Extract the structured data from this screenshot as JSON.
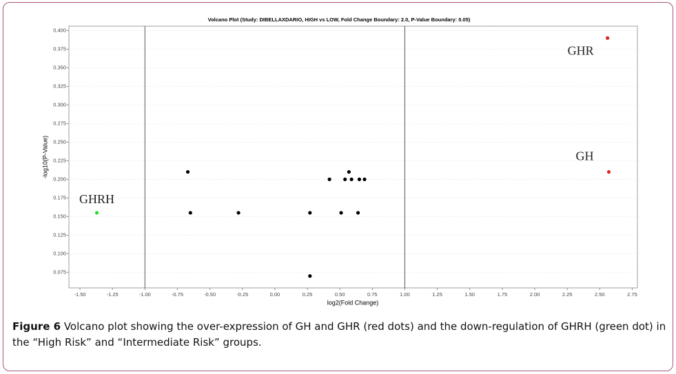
{
  "chart_data": {
    "type": "scatter",
    "title": "Volcano Plot (Study: DIBELLAXDARIO, HIGH vs LOW, Fold Change Boundary: 2.0, P-Value Boundary: 0.05)",
    "x_label": "log2(Fold Change)",
    "y_label": "-log10(P-Value)",
    "series": [
      {
        "color": "#000000",
        "x": [
          -0.67,
          -0.65,
          -0.28,
          0.27,
          0.27,
          0.42,
          0.54,
          0.57,
          0.59,
          0.65,
          0.69,
          0.51,
          0.64
        ],
        "values": [
          0.21,
          0.155,
          0.155,
          0.155,
          0.07,
          0.2,
          0.2,
          0.21,
          0.2,
          0.2,
          0.2,
          0.155,
          0.155
        ]
      },
      {
        "color": "#22dd22",
        "x": [
          -1.37
        ],
        "values": [
          0.155
        ],
        "point_labels": [
          "GHRH"
        ]
      },
      {
        "color": "#dd2222",
        "x": [
          2.56,
          2.57
        ],
        "values": [
          0.39,
          0.21
        ],
        "point_labels": [
          "GHR",
          "GH"
        ]
      }
    ],
    "boundaries": [
      -1,
      1
    ],
    "xlim": [
      -1.585,
      2.79
    ],
    "ylim": [
      0.054,
      0.406
    ],
    "xticks": [
      {
        "value": -1.5,
        "label": "-1.50"
      },
      {
        "value": -1.25,
        "label": "-1.25"
      },
      {
        "value": -1,
        "label": "-1.00"
      },
      {
        "value": -0.75,
        "label": "-0.75"
      },
      {
        "value": -0.5,
        "label": "-0.50"
      },
      {
        "value": -0.25,
        "label": "-0.25"
      },
      {
        "value": 0,
        "label": "0.00"
      },
      {
        "value": 0.25,
        "label": "0.25"
      },
      {
        "value": 0.5,
        "label": "0.50"
      },
      {
        "value": 0.75,
        "label": "0.75"
      },
      {
        "value": 1,
        "label": "1.00"
      },
      {
        "value": 1.25,
        "label": "1.25"
      },
      {
        "value": 1.5,
        "label": "1.50"
      },
      {
        "value": 1.75,
        "label": "1.75"
      },
      {
        "value": 2,
        "label": "2.00"
      },
      {
        "value": 2.25,
        "label": "2.25"
      },
      {
        "value": 2.5,
        "label": "2.50"
      },
      {
        "value": 2.75,
        "label": "2.75"
      }
    ],
    "yticks": [
      {
        "value": 0.075,
        "label": "0.075"
      },
      {
        "value": 0.1,
        "label": "0.100"
      },
      {
        "value": 0.125,
        "label": "0.125"
      },
      {
        "value": 0.15,
        "label": "0.150"
      },
      {
        "value": 0.175,
        "label": "0.175"
      },
      {
        "value": 0.2,
        "label": "0.200"
      },
      {
        "value": 0.225,
        "label": "0.225"
      },
      {
        "value": 0.25,
        "label": "0.250"
      },
      {
        "value": 0.275,
        "label": "0.275"
      },
      {
        "value": 0.3,
        "label": "0.300"
      },
      {
        "value": 0.325,
        "label": "0.325"
      },
      {
        "value": 0.35,
        "label": "0.350"
      },
      {
        "value": 0.375,
        "label": "0.375"
      },
      {
        "value": 0.4,
        "label": "0.400"
      }
    ],
    "grid": true
  },
  "caption": {
    "label": "Figure 6",
    "text": "Volcano plot showing the over-expression of GH and GHR (red dots) and the down-regulation of GHRH (green dot) in the “High Risk” and “Intermediate Risk” groups."
  }
}
